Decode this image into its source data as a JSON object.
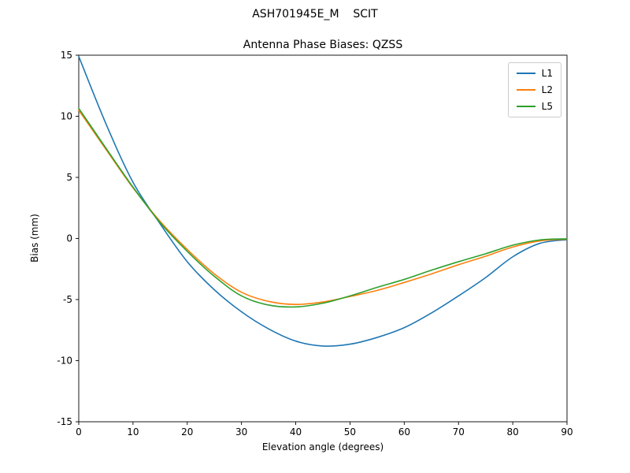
{
  "figure_title": "ASH701945E_M    SCIT",
  "chart_data": {
    "type": "line",
    "title": "Antenna Phase Biases: QZSS",
    "xlabel": "Elevation angle (degrees)",
    "ylabel": "Bias (mm)",
    "xlim": [
      0,
      90
    ],
    "ylim": [
      -15,
      15
    ],
    "x_ticks": [
      0,
      10,
      20,
      30,
      40,
      50,
      60,
      70,
      80,
      90
    ],
    "y_ticks": [
      -15,
      -10,
      -5,
      0,
      5,
      10,
      15
    ],
    "grid": false,
    "legend_position": "upper right",
    "x": [
      0,
      5,
      10,
      15,
      20,
      25,
      30,
      35,
      40,
      45,
      50,
      55,
      60,
      65,
      70,
      75,
      80,
      85,
      90
    ],
    "series": [
      {
        "name": "L1",
        "color": "#1f77b4",
        "values": [
          14.9,
          9.4,
          4.6,
          1.2,
          -1.9,
          -4.2,
          -6.0,
          -7.4,
          -8.4,
          -8.8,
          -8.65,
          -8.1,
          -7.3,
          -6.1,
          -4.7,
          -3.2,
          -1.5,
          -0.4,
          -0.1
        ]
      },
      {
        "name": "L2",
        "color": "#ff7f0e",
        "values": [
          10.5,
          7.3,
          4.15,
          1.4,
          -0.9,
          -2.9,
          -4.4,
          -5.15,
          -5.4,
          -5.2,
          -4.75,
          -4.25,
          -3.6,
          -2.9,
          -2.15,
          -1.45,
          -0.7,
          -0.2,
          -0.05
        ]
      },
      {
        "name": "L5",
        "color": "#2ca02c",
        "values": [
          10.65,
          7.4,
          4.2,
          1.3,
          -1.05,
          -3.1,
          -4.7,
          -5.45,
          -5.6,
          -5.3,
          -4.7,
          -4.0,
          -3.35,
          -2.6,
          -1.9,
          -1.25,
          -0.55,
          -0.12,
          -0.03
        ]
      }
    ]
  }
}
